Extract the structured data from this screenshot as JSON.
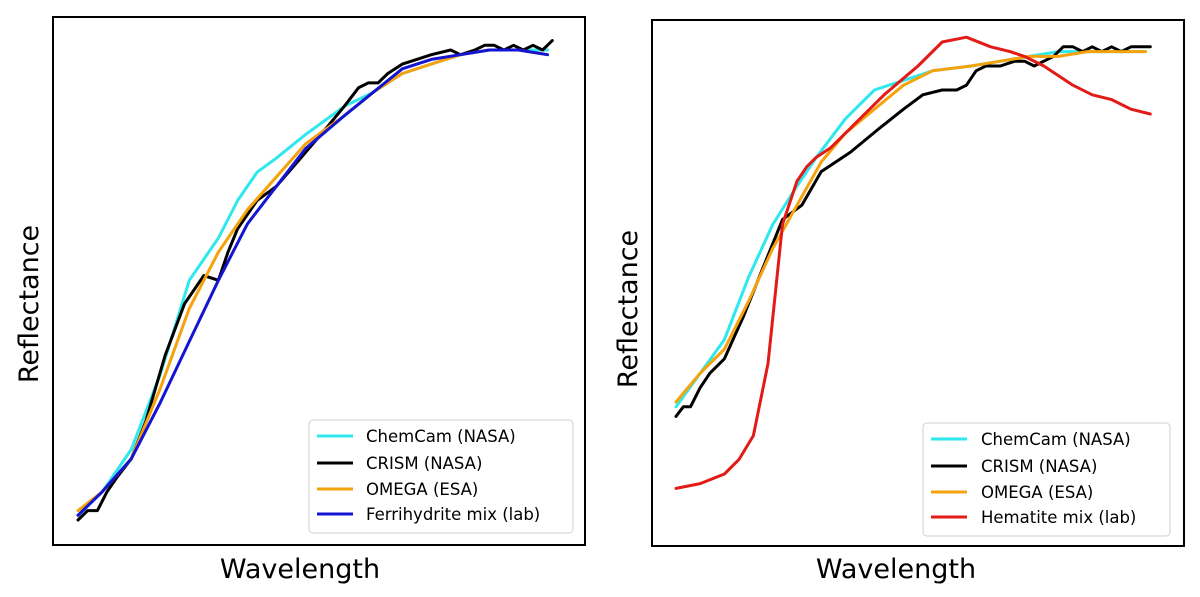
{
  "chart_data": [
    {
      "type": "line",
      "xlabel": "Wavelength",
      "ylabel": "Reflectance",
      "xlim": [
        0,
        100
      ],
      "ylim": [
        0,
        100
      ],
      "x_ticks": "none",
      "y_ticks": "none",
      "grid": false,
      "legend": "bottom-right",
      "series": [
        {
          "name": "ChemCam (NASA)",
          "color": "#2ee8ee",
          "x": [
            0,
            5,
            11,
            17,
            23,
            29,
            33,
            37,
            41,
            47,
            55,
            61,
            67,
            73,
            79,
            85,
            91,
            97
          ],
          "y": [
            1,
            6,
            15,
            31,
            51,
            60,
            68,
            74,
            77,
            82,
            88,
            91,
            95,
            97,
            99,
            100,
            100,
            100
          ]
        },
        {
          "name": "CRISM (NASA)",
          "color": "#000000",
          "x": [
            0,
            2,
            4,
            6,
            8,
            11,
            14,
            18,
            22,
            26,
            29,
            31,
            33,
            37,
            41,
            46,
            51,
            55,
            58,
            60,
            62,
            64,
            67,
            70,
            73,
            77,
            79,
            82,
            84,
            86,
            88,
            90,
            92,
            94,
            96,
            98
          ],
          "y": [
            0,
            2,
            2,
            6,
            9,
            13,
            21,
            35,
            46,
            52,
            51,
            57,
            62,
            68,
            71,
            77,
            83,
            88,
            92,
            93,
            93,
            95,
            97,
            98,
            99,
            100,
            99,
            100,
            101,
            101,
            100,
            101,
            100,
            101,
            100,
            102
          ]
        },
        {
          "name": "OMEGA (ESA)",
          "color": "#f5a20c",
          "x": [
            0,
            5,
            11,
            17,
            23,
            29,
            35,
            41,
            47,
            55,
            61,
            67,
            73,
            79,
            85,
            91,
            97
          ],
          "y": [
            2,
            6,
            13,
            28,
            45,
            57,
            66,
            73,
            80,
            86,
            91,
            95,
            97,
            99,
            100,
            100,
            99
          ]
        },
        {
          "name": "Ferrihydrite mix (lab)",
          "color": "#1414d2",
          "x": [
            0,
            5,
            11,
            17,
            23,
            29,
            35,
            41,
            47,
            55,
            61,
            67,
            73,
            79,
            85,
            91,
            97
          ],
          "y": [
            1,
            6,
            13,
            25,
            38,
            51,
            63,
            71,
            79,
            86,
            91,
            96,
            98,
            99,
            100,
            100,
            99
          ]
        }
      ]
    },
    {
      "type": "line",
      "xlabel": "Wavelength",
      "ylabel": "Reflectance",
      "xlim": [
        0,
        100
      ],
      "ylim": [
        0,
        100
      ],
      "x_ticks": "none",
      "y_ticks": "none",
      "grid": false,
      "legend": "bottom-right",
      "series": [
        {
          "name": "ChemCam (NASA)",
          "color": "#2ee8ee",
          "x": [
            0,
            5,
            10,
            15,
            20,
            25,
            29,
            35,
            41,
            47,
            53,
            61,
            67,
            73,
            79,
            85,
            91,
            97
          ],
          "y": [
            24,
            31,
            38,
            51,
            62,
            70,
            76,
            84,
            90,
            92,
            94,
            95,
            96,
            97,
            98,
            98,
            98,
            98
          ]
        },
        {
          "name": "CRISM (NASA)",
          "color": "#000000",
          "x": [
            0,
            1.5,
            3,
            5,
            7,
            10,
            14,
            18,
            22,
            26,
            30,
            36,
            42,
            47,
            51,
            55,
            58,
            60,
            62,
            64,
            67,
            70,
            72,
            74,
            76,
            78,
            80,
            82,
            84,
            86,
            88,
            90,
            92,
            94,
            96,
            98
          ],
          "y": [
            22,
            24,
            24,
            28,
            31,
            34,
            43,
            53,
            63,
            66,
            73,
            77,
            82,
            86,
            89,
            90,
            90,
            91,
            94,
            95,
            95,
            96,
            96,
            95,
            96,
            97,
            99,
            99,
            98,
            99,
            98,
            99,
            98,
            99,
            99,
            99
          ]
        },
        {
          "name": "OMEGA (ESA)",
          "color": "#f5a20c",
          "x": [
            0,
            5,
            10,
            15,
            20,
            25,
            30,
            35,
            41,
            47,
            53,
            61,
            67,
            73,
            79,
            85,
            91,
            97
          ],
          "y": [
            25,
            31,
            36,
            46,
            57,
            66,
            75,
            81,
            86,
            91,
            94,
            95,
            96,
            97,
            97,
            98,
            98,
            98
          ]
        },
        {
          "name": "Hematite mix (lab)",
          "color": "#e21b16",
          "x": [
            0,
            5,
            10,
            13,
            16,
            19,
            22,
            25,
            27,
            29,
            32,
            37,
            43,
            50,
            55,
            60,
            65,
            69,
            72,
            76,
            82,
            86,
            90,
            94,
            98
          ],
          "y": [
            7,
            8,
            10,
            13,
            18,
            33,
            62,
            71,
            74,
            76,
            78,
            83,
            89,
            95,
            100,
            101,
            99,
            98,
            97,
            95,
            91,
            89,
            88,
            86,
            85
          ]
        }
      ]
    }
  ]
}
